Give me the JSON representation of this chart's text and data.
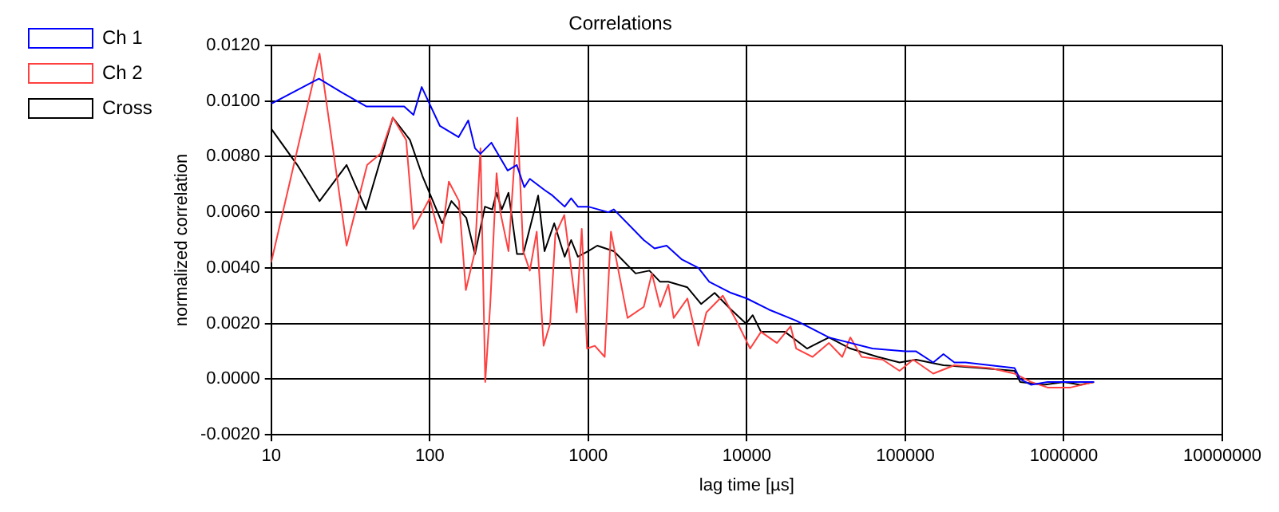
{
  "chart_data": {
    "type": "line",
    "title": "Correlations",
    "xlabel": "lag time [µs]",
    "ylabel": "normalized correlation",
    "log": "x",
    "xlim": [
      10,
      10000000
    ],
    "xticks": [
      10,
      100,
      1000,
      10000,
      100000,
      1000000,
      10000000
    ],
    "ylim": [
      -0.002,
      0.012
    ],
    "yticks": [
      {
        "value": -0.002,
        "label": "-0.0020"
      },
      {
        "value": 0,
        "label": "0.0000"
      },
      {
        "value": 0.002,
        "label": "0.0020"
      },
      {
        "value": 0.004,
        "label": "0.0040"
      },
      {
        "value": 0.006,
        "label": "0.0060"
      },
      {
        "value": 0.008,
        "label": "0.0080"
      },
      {
        "value": 0.01,
        "label": "0.0100"
      },
      {
        "value": 0.012,
        "label": "0.0120"
      }
    ],
    "grid": true,
    "legend": "top left",
    "marker": "none",
    "line_style": "solid",
    "series": [
      {
        "name": "Ch 1",
        "color": "#0000ff",
        "x": [
          10,
          20,
          28,
          40,
          57,
          69,
          79,
          89,
          116,
          152,
          175,
          193,
          209,
          245,
          310,
          354,
          395,
          428,
          530,
          595,
          710,
          780,
          860,
          1000,
          1340,
          1450,
          2240,
          2620,
          3120,
          3900,
          4950,
          5800,
          7960,
          10000,
          13800,
          20500,
          33000,
          62000,
          100000,
          117000,
          150000,
          174000,
          204000,
          240000,
          342000,
          489000,
          530000,
          620000,
          790000,
          1000000,
          1270000,
          1550000
        ],
        "values": [
          0.0099,
          0.0108,
          0.0103,
          0.0098,
          0.0098,
          0.0098,
          0.0095,
          0.0105,
          0.0091,
          0.0087,
          0.0093,
          0.0083,
          0.0081,
          0.0085,
          0.0075,
          0.0077,
          0.0069,
          0.0072,
          0.0068,
          0.0066,
          0.0062,
          0.0065,
          0.0062,
          0.0062,
          0.006,
          0.0061,
          0.005,
          0.0047,
          0.0048,
          0.0043,
          0.004,
          0.0035,
          0.0031,
          0.0029,
          0.0025,
          0.0021,
          0.0015,
          0.0011,
          0.001,
          0.001,
          0.0006,
          0.0009,
          0.0006,
          0.0006,
          0.0005,
          0.0004,
          0,
          -0.0002,
          -0.0001,
          -0.0001,
          -0.0001,
          -0.0001
        ]
      },
      {
        "name": "Ch 2",
        "color": "#ff4040",
        "x": [
          10,
          20.2,
          29.9,
          40.3,
          48.9,
          58.5,
          71,
          79,
          100,
          118,
          132,
          153,
          169,
          193,
          209,
          224,
          241,
          264,
          279,
          314,
          357,
          389,
          428,
          473,
          523,
          575,
          620,
          706,
          845,
          910,
          983,
          1100,
          1270,
          1390,
          1770,
          2240,
          2520,
          2840,
          3200,
          3460,
          4220,
          4950,
          5560,
          7060,
          8600,
          10500,
          12300,
          15500,
          18900,
          20500,
          26000,
          33000,
          40000,
          45000,
          53000,
          72000,
          92000,
          112000,
          150000,
          204000,
          342000,
          489000,
          620000,
          790000,
          1100000,
          1550000
        ],
        "values": [
          0.0042,
          0.0117,
          0.0048,
          0.0077,
          0.0081,
          0.0094,
          0.0086,
          0.0054,
          0.0065,
          0.0049,
          0.0071,
          0.0064,
          0.0032,
          0.0046,
          0.0083,
          -0.0001,
          0.0027,
          0.0074,
          0.006,
          0.0046,
          0.0094,
          0.0046,
          0.0039,
          0.0053,
          0.0012,
          0.002,
          0.0052,
          0.0059,
          0.0024,
          0.0054,
          0.0011,
          0.0012,
          0.0008,
          0.0053,
          0.0022,
          0.0026,
          0.0038,
          0.0026,
          0.0034,
          0.0022,
          0.0029,
          0.0012,
          0.0024,
          0.003,
          0.0021,
          0.0011,
          0.0017,
          0.0013,
          0.0019,
          0.0011,
          0.0008,
          0.0013,
          0.0008,
          0.0015,
          0.0008,
          0.0007,
          0.0003,
          0.0007,
          0.0002,
          0.0005,
          0.0004,
          0.0002,
          -0.0001,
          -0.0003,
          -0.0003,
          -0.0001
        ]
      },
      {
        "name": "Cross",
        "color": "#000000",
        "x": [
          10,
          14.6,
          20.2,
          29.9,
          39.6,
          58.5,
          75,
          90,
          103,
          120,
          137,
          170,
          193,
          223,
          248,
          264,
          285,
          314,
          355,
          389,
          483,
          530,
          610,
          710,
          780,
          860,
          1000,
          1140,
          1450,
          1990,
          2430,
          2840,
          3200,
          4220,
          5150,
          6270,
          7960,
          9900,
          10900,
          12300,
          17400,
          24000,
          33000,
          45000,
          67000,
          92000,
          117000,
          174000,
          300000,
          489000,
          530000,
          750000,
          1000000,
          1270000,
          1550000
        ],
        "values": [
          0.009,
          0.0077,
          0.0064,
          0.0077,
          0.0061,
          0.0094,
          0.0086,
          0.0073,
          0.0065,
          0.0056,
          0.0064,
          0.0058,
          0.0045,
          0.0062,
          0.0061,
          0.0067,
          0.0061,
          0.0067,
          0.0045,
          0.0045,
          0.0066,
          0.0046,
          0.0056,
          0.0044,
          0.005,
          0.0044,
          0.0046,
          0.0048,
          0.0046,
          0.0038,
          0.0039,
          0.0035,
          0.0035,
          0.0033,
          0.0027,
          0.0031,
          0.0025,
          0.002,
          0.0023,
          0.0017,
          0.0017,
          0.0011,
          0.0015,
          0.0011,
          0.0008,
          0.0006,
          0.0007,
          0.0005,
          0.0004,
          0.0003,
          -0.0001,
          -0.0002,
          -0.0001,
          -0.0002,
          -0.0001
        ]
      }
    ]
  }
}
